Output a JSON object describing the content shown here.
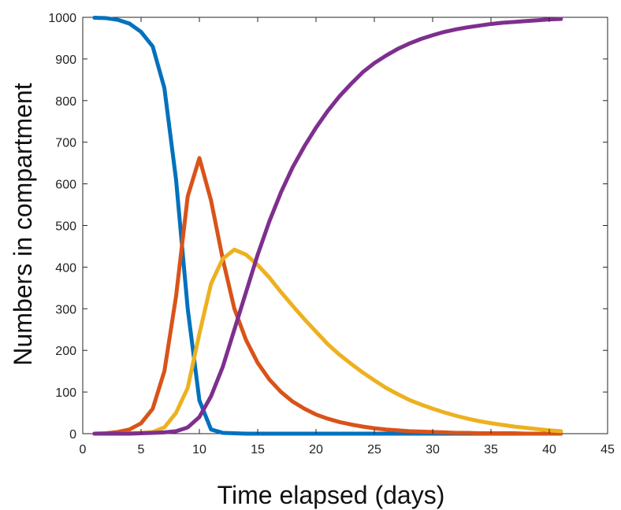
{
  "chart_data": {
    "type": "line",
    "title": "",
    "xlabel": "Time elapsed (days)",
    "ylabel": "Numbers in compartment",
    "xlim": [
      0,
      45
    ],
    "ylim": [
      0,
      1000
    ],
    "xticks": [
      0,
      5,
      10,
      15,
      20,
      25,
      30,
      35,
      40,
      45
    ],
    "yticks": [
      0,
      100,
      200,
      300,
      400,
      500,
      600,
      700,
      800,
      900,
      1000
    ],
    "grid": false,
    "legend": "none",
    "x": [
      1,
      2,
      3,
      4,
      5,
      6,
      7,
      8,
      9,
      10,
      11,
      12,
      13,
      14,
      15,
      16,
      17,
      18,
      19,
      20,
      21,
      22,
      23,
      24,
      25,
      26,
      27,
      28,
      29,
      30,
      31,
      32,
      33,
      34,
      35,
      36,
      37,
      38,
      39,
      40,
      41
    ],
    "series": [
      {
        "color": "#0072BD",
        "values": [
          999,
          998,
          994,
          985,
          965,
          930,
          830,
          610,
          300,
          80,
          10,
          2,
          1,
          0,
          0,
          0,
          0,
          0,
          0,
          0,
          0,
          0,
          0,
          0,
          0,
          0,
          0,
          0,
          0,
          0,
          0,
          0,
          0,
          0,
          0,
          0,
          0,
          0,
          0,
          0,
          0
        ]
      },
      {
        "color": "#D95319",
        "values": [
          0,
          1,
          4,
          10,
          25,
          60,
          150,
          330,
          570,
          662,
          560,
          420,
          300,
          225,
          170,
          130,
          100,
          77,
          60,
          46,
          36,
          28,
          22,
          17,
          13,
          10,
          8,
          6,
          5,
          4,
          3,
          2,
          2,
          1,
          1,
          1,
          1,
          0,
          0,
          0,
          0
        ]
      },
      {
        "color": "#EDB120",
        "values": [
          0,
          0,
          0,
          1,
          2,
          4,
          15,
          50,
          110,
          240,
          360,
          420,
          442,
          430,
          405,
          375,
          340,
          307,
          275,
          245,
          215,
          190,
          168,
          147,
          128,
          110,
          95,
          81,
          70,
          60,
          51,
          43,
          36,
          30,
          25,
          21,
          17,
          14,
          11,
          8,
          6
        ]
      },
      {
        "color": "#7E2F8E",
        "values": [
          0,
          0,
          0,
          0,
          1,
          2,
          3,
          6,
          15,
          40,
          90,
          160,
          250,
          340,
          430,
          510,
          580,
          640,
          690,
          735,
          775,
          810,
          840,
          868,
          890,
          908,
          924,
          937,
          948,
          957,
          965,
          971,
          976,
          980,
          984,
          987,
          989,
          991,
          993,
          995,
          996
        ]
      }
    ]
  }
}
